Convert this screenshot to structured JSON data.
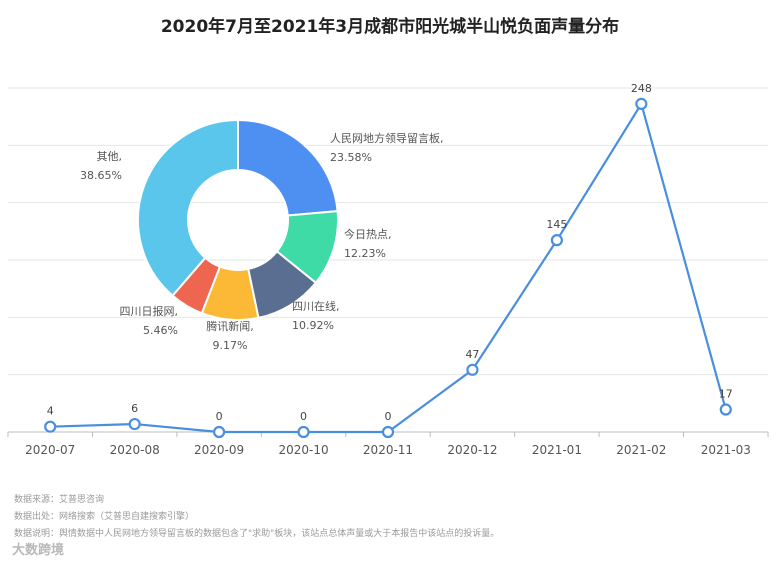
{
  "title": "2020年7月至2021年3月成都市阳光城半山悦负面声量分布",
  "chart_data": [
    {
      "type": "line",
      "categories": [
        "2020-07",
        "2020-08",
        "2020-09",
        "2020-10",
        "2020-11",
        "2020-12",
        "2021-01",
        "2021-02",
        "2021-03"
      ],
      "values": [
        4,
        6,
        0,
        0,
        0,
        47,
        145,
        248,
        17
      ],
      "ylim": [
        0,
        260
      ],
      "grid": true,
      "color": "#4a8ee0"
    },
    {
      "type": "pie",
      "slices": [
        {
          "label": "人民网地方领导留言板,",
          "value_label": "23.58%",
          "value": 23.58,
          "color": "#4e90f2"
        },
        {
          "label": "今日热点,",
          "value_label": "12.23%",
          "value": 12.23,
          "color": "#3fdba6"
        },
        {
          "label": "四川在线,",
          "value_label": "10.92%",
          "value": 10.92,
          "color": "#5a6e91"
        },
        {
          "label": "腾讯新闻,",
          "value_label": "9.17%",
          "value": 9.17,
          "color": "#fbb935"
        },
        {
          "label": "四川日报网,",
          "value_label": "5.46%",
          "value": 5.46,
          "color": "#ef6650"
        },
        {
          "label": "其他,",
          "value_label": "38.65%",
          "value": 38.65,
          "color": "#5bc6ec"
        }
      ]
    }
  ],
  "notes": [
    "数据来源：艾普思咨询",
    "数据出处：网络搜索（艾普思自建搜索引擎）",
    "数据说明：舆情数据中人民网地方领导留言板的数据包含了\"求助\"板块，该站点总体声量或大于本报告中该站点的投诉量。"
  ],
  "brand": "大数跨境"
}
